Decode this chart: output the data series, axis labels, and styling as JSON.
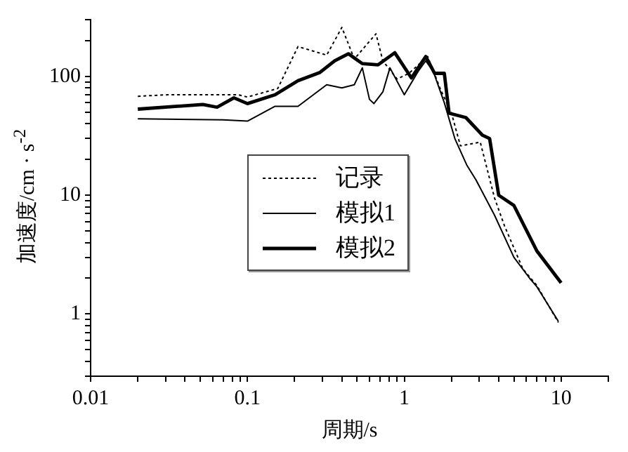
{
  "chart_data": {
    "type": "line",
    "xlabel": "周期/s",
    "ylabel": "加速度/cm · s$^{-2}$",
    "log": "xy",
    "xlim": [
      0.01,
      20
    ],
    "ylim": [
      0.3,
      300
    ],
    "xticks": [
      0.01,
      {
        "value": 0.02,
        "label": null
      },
      {
        "value": 0.03,
        "label": null
      },
      {
        "value": 0.04,
        "label": null
      },
      {
        "value": 0.05,
        "label": null
      },
      {
        "value": 0.06,
        "label": null
      },
      {
        "value": 0.07,
        "label": null
      },
      {
        "value": 0.08,
        "label": null
      },
      {
        "value": 0.09,
        "label": null
      },
      0.1,
      {
        "value": 0.2,
        "label": null
      },
      {
        "value": 0.3,
        "label": null
      },
      {
        "value": 0.4,
        "label": null
      },
      {
        "value": 0.5,
        "label": null
      },
      {
        "value": 0.6,
        "label": null
      },
      {
        "value": 0.7,
        "label": null
      },
      {
        "value": 0.8,
        "label": null
      },
      {
        "value": 0.9,
        "label": null
      },
      1,
      {
        "value": 2,
        "label": null
      },
      {
        "value": 3,
        "label": null
      },
      {
        "value": 4,
        "label": null
      },
      {
        "value": 5,
        "label": null
      },
      {
        "value": 6,
        "label": null
      },
      {
        "value": 7,
        "label": null
      },
      {
        "value": 8,
        "label": null
      },
      {
        "value": 9,
        "label": null
      },
      10,
      {
        "value": 20,
        "label": null
      }
    ],
    "yticks": [
      {
        "value": 0.3,
        "label": null
      },
      {
        "value": 0.4,
        "label": null
      },
      {
        "value": 0.5,
        "label": null
      },
      {
        "value": 0.6,
        "label": null
      },
      {
        "value": 0.7,
        "label": null
      },
      {
        "value": 0.8,
        "label": null
      },
      {
        "value": 0.9,
        "label": null
      },
      1,
      {
        "value": 2,
        "label": null
      },
      {
        "value": 3,
        "label": null
      },
      {
        "value": 4,
        "label": null
      },
      {
        "value": 5,
        "label": null
      },
      {
        "value": 6,
        "label": null
      },
      {
        "value": 7,
        "label": null
      },
      {
        "value": 8,
        "label": null
      },
      {
        "value": 9,
        "label": null
      },
      10,
      {
        "value": 20,
        "label": null
      },
      {
        "value": 30,
        "label": null
      },
      {
        "value": 40,
        "label": null
      },
      {
        "value": 50,
        "label": null
      },
      {
        "value": 60,
        "label": null
      },
      {
        "value": 70,
        "label": null
      },
      {
        "value": 80,
        "label": null
      },
      {
        "value": 90,
        "label": null
      },
      100,
      {
        "value": 200,
        "label": null
      },
      {
        "value": 300,
        "label": null
      }
    ],
    "grid": false,
    "legend": "center",
    "marker": "none",
    "series": [
      {
        "name": "记录",
        "color": "#000000",
        "line_style": "dotted",
        "x": [
          0.02,
          0.031,
          0.087,
          0.1,
          0.156,
          0.21,
          0.32,
          0.4,
          0.48,
          0.66,
          0.73,
          0.9,
          1.07,
          1.41,
          1.7,
          2.0,
          2.28,
          3.05,
          3.76,
          4.36,
          5.7,
          7.0,
          9.6
        ],
        "values": [
          68,
          70,
          70,
          67,
          79,
          178,
          151,
          258,
          140,
          228,
          135,
          95,
          106,
          147,
          78,
          49,
          26,
          28,
          9.5,
          5.5,
          2.4,
          1.74,
          0.85
        ]
      },
      {
        "name": "模拟1",
        "color": "#000000",
        "line_style": "solid",
        "x": [
          0.02,
          0.07,
          0.1,
          0.15,
          0.21,
          0.32,
          0.4,
          0.48,
          0.54,
          0.6,
          0.64,
          0.73,
          0.81,
          1.0,
          1.23,
          1.37,
          1.53,
          1.8,
          2.1,
          2.5,
          2.86,
          3.76,
          5.0,
          6.3,
          7.0,
          9.6
        ],
        "values": [
          44,
          43,
          42,
          56,
          56,
          85,
          80,
          85,
          118,
          64,
          59,
          74,
          118,
          70,
          111,
          135,
          110,
          60,
          30,
          18,
          13.5,
          6.8,
          3.0,
          2.0,
          1.7,
          0.87
        ]
      },
      {
        "name": "模拟2",
        "color": "#000000",
        "line_style": "solid",
        "x": [
          0.02,
          0.052,
          0.064,
          0.082,
          0.1,
          0.15,
          0.21,
          0.29,
          0.36,
          0.44,
          0.54,
          0.68,
          0.87,
          1.11,
          1.37,
          1.56,
          1.8,
          1.93,
          2.47,
          3.15,
          3.5,
          4.0,
          5.0,
          7.0,
          10
        ],
        "values": [
          53,
          58,
          55,
          66,
          59,
          70,
          92,
          108,
          135,
          155,
          128,
          125,
          158,
          97,
          147,
          106,
          106,
          49,
          45,
          32,
          30,
          10,
          8.2,
          3.4,
          1.83
        ]
      }
    ]
  }
}
